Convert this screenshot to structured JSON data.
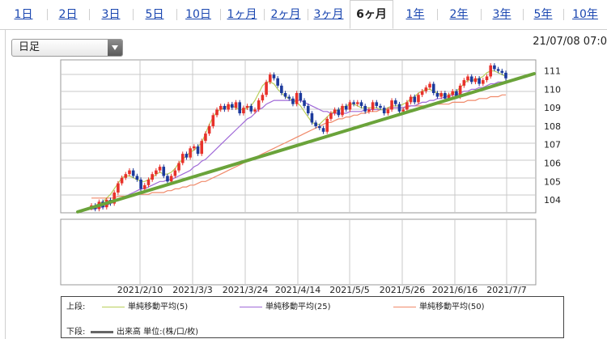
{
  "tabs": [
    {
      "label": "1日",
      "active": false
    },
    {
      "label": "2日",
      "active": false
    },
    {
      "label": "3日",
      "active": false
    },
    {
      "label": "5日",
      "active": false
    },
    {
      "label": "10日",
      "active": false
    },
    {
      "label": "1ヶ月",
      "active": false
    },
    {
      "label": "2ヶ月",
      "active": false
    },
    {
      "label": "3ヶ月",
      "active": false
    },
    {
      "label": "6ヶ月",
      "active": true
    },
    {
      "label": "1年",
      "active": false
    },
    {
      "label": "2年",
      "active": false
    },
    {
      "label": "3年",
      "active": false
    },
    {
      "label": "5年",
      "active": false
    },
    {
      "label": "10年",
      "active": false
    }
  ],
  "dropdown": {
    "selected": "日足"
  },
  "timestamp": "21/07/08 07:0",
  "legend": {
    "upper_label": "上段:",
    "lower_label": "下段:",
    "sma5": {
      "label": "単純移動平均(5)",
      "color": "#b9cf5a"
    },
    "sma25": {
      "label": "単純移動平均(25)",
      "color": "#a06ad8"
    },
    "sma50": {
      "label": "単純移動平均(50)",
      "color": "#f08a6a"
    },
    "volume": {
      "label": "出来高 単位:(株/口/枚)",
      "color": "#666666"
    }
  },
  "colors": {
    "up": "#e8312a",
    "down": "#1c3a9c",
    "trendline": "#6aa33a",
    "grid": "#c8c8c8"
  },
  "chart_data": {
    "type": "candlestick",
    "x_tick_labels": [
      "2021/2/10",
      "2021/3/3",
      "2021/3/24",
      "2021/4/14",
      "2021/5/5",
      "2021/5/26",
      "2021/6/16",
      "2021/7/7"
    ],
    "y_tick_labels": [
      "104",
      "105",
      "106",
      "107",
      "108",
      "109",
      "110",
      "111"
    ],
    "ylim": [
      103.3,
      111.6
    ],
    "grid": true,
    "close": [
      103.7,
      103.5,
      103.9,
      103.6,
      104.0,
      103.8,
      104.4,
      104.9,
      105.2,
      105.4,
      105.6,
      105.3,
      105.1,
      104.6,
      104.8,
      105.1,
      105.4,
      105.6,
      105.8,
      105.3,
      105.0,
      105.3,
      105.6,
      106.0,
      106.5,
      106.3,
      106.8,
      106.9,
      106.5,
      107.2,
      107.6,
      108.0,
      108.6,
      108.9,
      109.1,
      108.9,
      109.2,
      109.0,
      109.3,
      108.7,
      109.0,
      109.1,
      108.8,
      108.9,
      109.4,
      109.7,
      110.4,
      110.8,
      110.6,
      110.2,
      109.8,
      109.6,
      109.5,
      109.2,
      109.8,
      109.4,
      109.1,
      108.7,
      108.2,
      108.0,
      107.9,
      107.7,
      108.4,
      108.7,
      108.9,
      108.6,
      109.1,
      108.9,
      109.3,
      109.2,
      109.3,
      109.1,
      108.8,
      108.9,
      109.3,
      109.1,
      109.0,
      108.7,
      108.9,
      109.4,
      109.2,
      108.8,
      108.9,
      109.3,
      109.6,
      109.3,
      109.7,
      109.9,
      110.1,
      110.3,
      109.8,
      109.6,
      109.8,
      109.5,
      109.7,
      109.9,
      109.6,
      110.2,
      110.5,
      110.7,
      110.4,
      110.6,
      110.3,
      110.5,
      110.7,
      111.3,
      111.1,
      111.0,
      110.9,
      110.6
    ],
    "sma5": [
      103.6,
      103.7,
      103.8,
      103.9,
      104.1,
      104.3,
      104.6,
      104.9,
      105.2,
      105.3,
      105.3,
      105.2,
      105.1,
      105.0,
      105.0,
      105.1,
      105.2,
      105.4,
      105.5,
      105.4,
      105.4,
      105.5,
      105.7,
      106.0,
      106.2,
      106.4,
      106.6,
      106.7,
      106.9,
      107.1,
      107.6,
      108.1,
      108.5,
      108.8,
      108.9,
      109.0,
      109.1,
      109.1,
      109.0,
      108.9,
      108.9,
      109.0,
      109.1,
      109.4,
      109.8,
      110.2,
      110.4,
      110.4,
      110.3,
      110.0,
      109.8,
      109.6,
      109.5,
      109.4,
      109.3,
      109.1,
      108.8,
      108.5,
      108.2,
      108.1,
      108.1,
      108.3,
      108.5,
      108.7,
      108.8,
      108.9,
      109.0,
      109.1,
      109.2,
      109.2,
      109.1,
      109.0,
      109.0,
      109.0,
      109.0,
      109.0,
      108.9,
      108.9,
      109.0,
      109.1,
      109.1,
      109.1,
      109.2,
      109.3,
      109.5,
      109.6,
      109.8,
      109.9,
      110.0,
      110.0,
      109.9,
      109.8,
      109.7,
      109.7,
      109.7,
      109.8,
      109.9,
      110.1,
      110.3,
      110.5,
      110.5,
      110.5,
      110.6,
      110.7,
      110.9,
      111.0,
      111.0,
      110.9,
      110.8,
      110.7
    ],
    "sma25": [
      103.5,
      103.5,
      103.6,
      103.6,
      103.7,
      103.8,
      103.9,
      104.0,
      104.1,
      104.2,
      104.3,
      104.4,
      104.5,
      104.6,
      104.6,
      104.7,
      104.8,
      104.9,
      105.0,
      105.0,
      105.1,
      105.1,
      105.2,
      105.3,
      105.4,
      105.5,
      105.6,
      105.8,
      105.9,
      106.1,
      106.2,
      106.4,
      106.6,
      106.8,
      107.0,
      107.2,
      107.4,
      107.6,
      107.8,
      108.0,
      108.2,
      108.4,
      108.5,
      108.7,
      108.9,
      109.0,
      109.2,
      109.3,
      109.4,
      109.4,
      109.4,
      109.4,
      109.4,
      109.4,
      109.4,
      109.4,
      109.3,
      109.2,
      109.1,
      109.0,
      108.9,
      108.8,
      108.8,
      108.7,
      108.7,
      108.7,
      108.7,
      108.7,
      108.8,
      108.8,
      108.8,
      108.8,
      108.9,
      108.9,
      108.9,
      108.9,
      108.9,
      108.9,
      109.0,
      109.0,
      109.0,
      109.0,
      109.0,
      109.1,
      109.1,
      109.1,
      109.2,
      109.3,
      109.3,
      109.4,
      109.4,
      109.5,
      109.5,
      109.6,
      109.6,
      109.7,
      109.7,
      109.8,
      109.9,
      109.9,
      110.0,
      110.0,
      110.1,
      110.1,
      110.2,
      110.3,
      110.3,
      110.4,
      110.4,
      110.4
    ],
    "sma50": [
      104.1,
      104.1,
      104.1,
      104.1,
      104.1,
      104.1,
      104.1,
      104.2,
      104.2,
      104.2,
      104.2,
      104.2,
      104.3,
      104.3,
      104.3,
      104.3,
      104.4,
      104.4,
      104.4,
      104.4,
      104.5,
      104.5,
      104.6,
      104.6,
      104.7,
      104.7,
      104.8,
      104.8,
      104.9,
      105.0,
      105.0,
      105.1,
      105.2,
      105.3,
      105.4,
      105.5,
      105.6,
      105.7,
      105.8,
      105.9,
      106.0,
      106.1,
      106.2,
      106.3,
      106.4,
      106.5,
      106.6,
      106.7,
      106.8,
      106.9,
      107.0,
      107.1,
      107.2,
      107.3,
      107.4,
      107.5,
      107.6,
      107.7,
      107.8,
      107.9,
      108.0,
      108.1,
      108.2,
      108.2,
      108.3,
      108.4,
      108.4,
      108.5,
      108.5,
      108.6,
      108.6,
      108.7,
      108.7,
      108.8,
      108.8,
      108.8,
      108.9,
      108.9,
      108.9,
      109.0,
      109.0,
      109.0,
      109.0,
      109.0,
      109.1,
      109.1,
      109.1,
      109.1,
      109.1,
      109.1,
      109.2,
      109.2,
      109.2,
      109.2,
      109.2,
      109.3,
      109.3,
      109.3,
      109.3,
      109.4,
      109.4,
      109.4,
      109.5,
      109.5,
      109.5,
      109.6,
      109.6,
      109.6,
      109.7,
      109.7
    ],
    "trendline": {
      "from_value": 103.35,
      "to_value": 110.85
    }
  }
}
